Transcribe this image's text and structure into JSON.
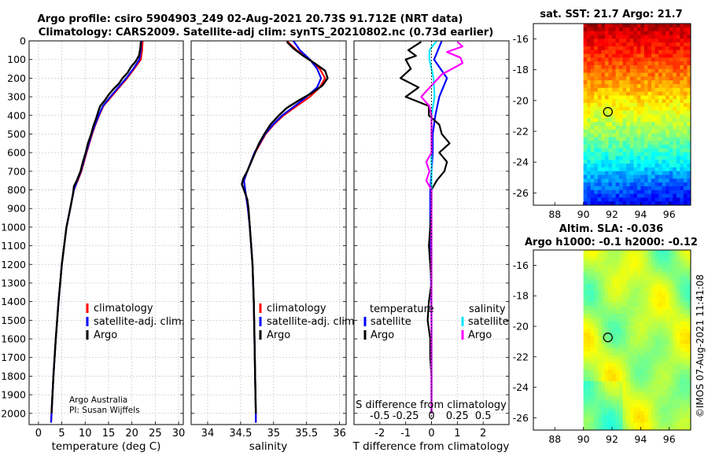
{
  "header": {
    "title_line1": "Argo profile: csiro 5904903_249 02-Aug-2021 20.73S 91.712E (NRT data)",
    "title_line2": "Climatology: CARS2009. Satellite-adj clim: synTS_20210802.nc (0.73d earlier)"
  },
  "credits": {
    "line1": "Argo Australia",
    "line2": "PI: Susan Wijffels",
    "stamp": "©IMOS 07-Aug-2021 11:41:08"
  },
  "colors": {
    "climatology": "#ff0000",
    "satellite": "#0000ff",
    "argo": "#000000",
    "sat_salinity": "#00e5ff",
    "argo_salinity": "#ff00ff"
  },
  "chart_data": [
    {
      "type": "line",
      "name": "temperature-profile",
      "xlabel": "temperature (deg C)",
      "ylabel": "",
      "xlim": [
        -2,
        31
      ],
      "ylim": [
        2060,
        0
      ],
      "xticks": [
        0,
        5,
        10,
        15,
        20,
        25,
        30
      ],
      "yticks": [
        0,
        100,
        200,
        300,
        400,
        500,
        600,
        700,
        800,
        900,
        1000,
        1100,
        1200,
        1300,
        1400,
        1500,
        1600,
        1700,
        1800,
        1900,
        2000
      ],
      "legend": [
        "climatology",
        "satellite-adj. clim.",
        "Argo"
      ],
      "series": [
        {
          "name": "climatology",
          "depth": [
            0,
            50,
            100,
            150,
            200,
            250,
            300,
            350,
            400,
            450,
            500,
            600,
            700,
            750,
            800,
            900,
            1000,
            1200,
            1400,
            1600,
            1800,
            2000,
            2050
          ],
          "values": [
            22.3,
            22.2,
            21.9,
            20.5,
            19.0,
            17.3,
            15.6,
            13.9,
            13.0,
            12.2,
            11.5,
            10.3,
            9.2,
            8.4,
            7.6,
            6.8,
            6.0,
            5.0,
            4.3,
            3.7,
            3.2,
            2.8,
            2.7
          ]
        },
        {
          "name": "satellite-adj. clim.",
          "depth": [
            0,
            50,
            100,
            150,
            200,
            250,
            300,
            350,
            400,
            450,
            500,
            600,
            700,
            750,
            800,
            900,
            1000,
            1200,
            1400,
            1600,
            1800,
            2000,
            2050
          ],
          "values": [
            22.0,
            21.9,
            21.6,
            20.3,
            18.8,
            17.1,
            15.4,
            13.8,
            12.9,
            12.1,
            11.4,
            10.2,
            9.1,
            8.3,
            7.6,
            6.8,
            6.0,
            5.0,
            4.3,
            3.7,
            3.2,
            2.8,
            2.7
          ]
        },
        {
          "name": "Argo",
          "depth": [
            5,
            40,
            80,
            110,
            140,
            170,
            200,
            230,
            260,
            290,
            320,
            350,
            380,
            420,
            460,
            500,
            550,
            600,
            650,
            700,
            750,
            780,
            820,
            900,
            1000,
            1200,
            1400,
            1600,
            1800,
            2000
          ],
          "values": [
            21.9,
            21.8,
            21.5,
            20.8,
            19.8,
            19.1,
            18.0,
            17.2,
            16.0,
            15.0,
            14.2,
            13.2,
            12.8,
            12.3,
            11.7,
            11.3,
            10.6,
            10.1,
            9.5,
            9.0,
            8.2,
            7.6,
            7.4,
            6.8,
            6.0,
            5.0,
            4.3,
            3.7,
            3.2,
            2.8
          ]
        }
      ]
    },
    {
      "type": "line",
      "name": "salinity-profile",
      "xlabel": "salinity",
      "xlim": [
        33.75,
        36.1
      ],
      "ylim": [
        2060,
        0
      ],
      "xticks": [
        34,
        34.5,
        35,
        35.5,
        36
      ],
      "legend": [
        "climatology",
        "satellite-adj. clim.",
        "Argo"
      ],
      "series": [
        {
          "name": "climatology",
          "depth": [
            0,
            50,
            100,
            150,
            200,
            250,
            300,
            350,
            400,
            450,
            500,
            600,
            700,
            750,
            800,
            900,
            1000,
            1200,
            1400,
            1600,
            1800,
            2000,
            2050
          ],
          "values": [
            35.2,
            35.35,
            35.55,
            35.7,
            35.78,
            35.7,
            35.55,
            35.35,
            35.15,
            35.0,
            34.88,
            34.72,
            34.6,
            34.55,
            34.57,
            34.61,
            34.64,
            34.68,
            34.7,
            34.71,
            34.72,
            34.73,
            34.73
          ]
        },
        {
          "name": "satellite-adj. clim.",
          "depth": [
            0,
            50,
            100,
            150,
            200,
            250,
            300,
            350,
            400,
            450,
            500,
            600,
            700,
            750,
            800,
            900,
            1000,
            1200,
            1400,
            1600,
            1800,
            2000,
            2050
          ],
          "values": [
            35.3,
            35.4,
            35.55,
            35.66,
            35.72,
            35.66,
            35.5,
            35.32,
            35.13,
            34.99,
            34.87,
            34.71,
            34.6,
            34.55,
            34.57,
            34.61,
            34.64,
            34.68,
            34.7,
            34.71,
            34.72,
            34.73,
            34.73
          ]
        },
        {
          "name": "Argo",
          "depth": [
            5,
            40,
            80,
            120,
            160,
            200,
            240,
            280,
            320,
            360,
            400,
            450,
            500,
            550,
            600,
            650,
            700,
            740,
            770,
            800,
            850,
            900,
            1000,
            1200,
            1400,
            1600,
            1800,
            2000
          ],
          "values": [
            35.2,
            35.3,
            35.45,
            35.62,
            35.78,
            35.82,
            35.74,
            35.58,
            35.38,
            35.2,
            35.08,
            34.95,
            34.86,
            34.78,
            34.72,
            34.66,
            34.6,
            34.54,
            34.52,
            34.55,
            34.6,
            34.62,
            34.64,
            34.68,
            34.7,
            34.71,
            34.72,
            34.73
          ]
        }
      ]
    },
    {
      "type": "line",
      "name": "difference-profile",
      "xlabel": "T difference from climatology",
      "xlabel_top": "S difference from climatology",
      "xlim": [
        -3,
        3
      ],
      "ylim": [
        2060,
        0
      ],
      "xticks": [
        -2,
        -1,
        0,
        1,
        2
      ],
      "xticks_s": [
        -0.5,
        -0.25,
        0,
        0.25,
        0.5
      ],
      "legend_headers": [
        "temperature",
        "salinity"
      ],
      "legend": [
        "satellite",
        "Argo",
        "satellite",
        "Argo"
      ],
      "series": [
        {
          "name": "temperature satellite",
          "depth": [
            0,
            100,
            200,
            300,
            400,
            500,
            600,
            700,
            800,
            1000,
            1500,
            2000
          ],
          "values": [
            0.4,
            0.1,
            0.6,
            0.3,
            0.15,
            0.05,
            0.05,
            0.0,
            -0.05,
            -0.05,
            0.0,
            0.0
          ]
        },
        {
          "name": "temperature Argo",
          "depth": [
            5,
            50,
            80,
            100,
            150,
            200,
            250,
            300,
            350,
            400,
            450,
            500,
            550,
            600,
            650,
            700,
            750,
            800,
            900,
            1000,
            1100,
            1200,
            1300,
            1400,
            1500,
            1600,
            1700,
            1800,
            1900,
            2000
          ],
          "values": [
            -0.4,
            -0.9,
            -0.6,
            -1.0,
            -0.8,
            -1.2,
            -0.5,
            -1.0,
            -0.1,
            -0.1,
            0.3,
            0.4,
            0.7,
            0.3,
            0.6,
            0.5,
            0.2,
            0.0,
            0.0,
            -0.05,
            -0.1,
            -0.05,
            0.0,
            -0.1,
            -0.15,
            -0.05,
            -0.05,
            0.0,
            0.0,
            0.0
          ]
        },
        {
          "name": "salinity satellite",
          "depth": [
            0,
            50,
            100,
            150,
            200,
            300,
            400,
            500,
            600,
            700,
            800,
            1000,
            1500,
            2000
          ],
          "values": [
            0.05,
            -0.02,
            -0.02,
            0.0,
            0.02,
            0.03,
            0.0,
            0.0,
            0.0,
            0.0,
            0.0,
            0.0,
            0.0,
            0.0
          ]
        },
        {
          "name": "salinity Argo",
          "depth": [
            5,
            30,
            60,
            90,
            120,
            150,
            180,
            210,
            240,
            270,
            300,
            350,
            400,
            450,
            500,
            600,
            650,
            700,
            750,
            800,
            900,
            1000,
            1200,
            1400,
            1600,
            1800,
            2000
          ],
          "values": [
            0.25,
            0.3,
            0.15,
            0.28,
            0.3,
            0.2,
            0.1,
            0.05,
            0.0,
            -0.05,
            -0.1,
            -0.02,
            0.0,
            0.0,
            0.0,
            0.0,
            -0.05,
            -0.02,
            -0.05,
            0.0,
            0.0,
            0.0,
            0.0,
            0.0,
            0.0,
            0.0,
            0.0
          ]
        }
      ]
    },
    {
      "type": "heatmap",
      "name": "sst-map",
      "title": "sat. SST: 21.7 Argo: 21.7",
      "xlim": [
        86.5,
        97.5
      ],
      "ylim": [
        -26.8,
        -15
      ],
      "xticks": [
        88,
        90,
        92,
        94,
        96
      ],
      "yticks": [
        -16,
        -18,
        -20,
        -22,
        -24,
        -26
      ],
      "data_x_range": [
        90,
        97.5
      ],
      "marker": {
        "lon": 91.712,
        "lat": -20.73
      }
    },
    {
      "type": "heatmap",
      "name": "sla-map",
      "title_line1": "Altim. SLA: -0.036",
      "title_line2": "Argo h1000: -0.1 h2000: -0.12",
      "xlim": [
        86.5,
        97.5
      ],
      "ylim": [
        -26.8,
        -15
      ],
      "xticks": [
        88,
        90,
        92,
        94,
        96
      ],
      "yticks": [
        -16,
        -18,
        -20,
        -22,
        -24,
        -26
      ],
      "data_x_range": [
        90,
        97.5
      ],
      "marker": {
        "lon": 91.712,
        "lat": -20.73
      }
    }
  ]
}
